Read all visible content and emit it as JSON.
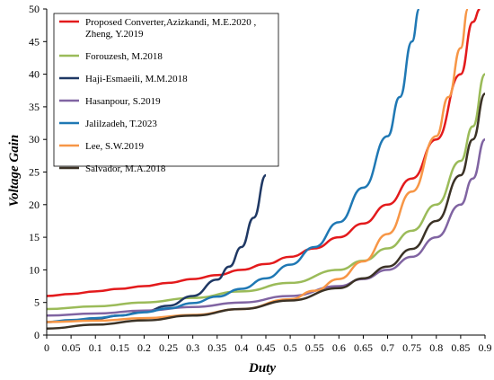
{
  "chart_data": {
    "type": "line",
    "xlabel": "Duty",
    "ylabel": "Voltage Gain",
    "xlim": [
      0,
      0.9
    ],
    "ylim": [
      0,
      50
    ],
    "xticks": [
      "0",
      "0.05",
      "0.1",
      "0.15",
      "0.2",
      "0.25",
      "0.3",
      "0.35",
      "0.4",
      "0.45",
      "0.5",
      "0.55",
      "0.6",
      "0.65",
      "0.7",
      "0.75",
      "0.8",
      "0.85",
      "0.9"
    ],
    "yticks": [
      "0",
      "5",
      "10",
      "15",
      "20",
      "25",
      "30",
      "35",
      "40",
      "45",
      "50"
    ],
    "grid": false,
    "legend_position": "top-left",
    "series": [
      {
        "name": "Proposed Converter,Azizkandi, M.E.2020 , Zheng, Y.2019",
        "color": "#e31a1c",
        "x": [
          0,
          0.05,
          0.1,
          0.15,
          0.2,
          0.25,
          0.3,
          0.35,
          0.4,
          0.45,
          0.5,
          0.55,
          0.6,
          0.65,
          0.7,
          0.75,
          0.8,
          0.85,
          0.875,
          0.89
        ],
        "y": [
          6,
          6.3,
          6.7,
          7.1,
          7.5,
          8.0,
          8.6,
          9.2,
          10.0,
          10.9,
          12.0,
          13.3,
          15.0,
          17.1,
          20.0,
          24.0,
          30.0,
          40.0,
          48.0,
          50.0
        ]
      },
      {
        "name": "Forouzesh, M.2018",
        "color": "#9bbb59",
        "x": [
          0,
          0.1,
          0.2,
          0.3,
          0.4,
          0.5,
          0.6,
          0.65,
          0.7,
          0.75,
          0.8,
          0.85,
          0.875,
          0.9
        ],
        "y": [
          4,
          4.4,
          5.0,
          5.7,
          6.7,
          8.0,
          10.0,
          11.4,
          13.3,
          16.0,
          20.0,
          26.7,
          32.0,
          40.0
        ]
      },
      {
        "name": "Haji-Esmaeili, M.M.2018",
        "color": "#1f3864",
        "x": [
          0,
          0.05,
          0.1,
          0.15,
          0.2,
          0.25,
          0.3,
          0.35,
          0.375,
          0.4,
          0.425,
          0.45
        ],
        "y": [
          2,
          2.2,
          2.5,
          3.0,
          3.6,
          4.5,
          6.0,
          8.5,
          10.5,
          13.5,
          18.0,
          24.5
        ]
      },
      {
        "name": "Hasanpour, S.2019",
        "color": "#8064a2",
        "x": [
          0,
          0.1,
          0.2,
          0.3,
          0.4,
          0.5,
          0.6,
          0.65,
          0.7,
          0.75,
          0.8,
          0.85,
          0.875,
          0.9
        ],
        "y": [
          3,
          3.3,
          3.75,
          4.3,
          5.0,
          6.0,
          7.5,
          8.6,
          10.0,
          12.0,
          15.0,
          20.0,
          24.0,
          30.0
        ]
      },
      {
        "name": "Jalilzadeh, T.2023",
        "color": "#1f78b4",
        "x": [
          0,
          0.05,
          0.1,
          0.15,
          0.2,
          0.25,
          0.3,
          0.35,
          0.4,
          0.45,
          0.5,
          0.55,
          0.6,
          0.65,
          0.7,
          0.725,
          0.75,
          0.765
        ],
        "y": [
          2,
          2.3,
          2.6,
          3.0,
          3.5,
          4.1,
          4.9,
          5.9,
          7.1,
          8.7,
          10.8,
          13.5,
          17.3,
          22.6,
          30.5,
          36.5,
          45.0,
          50.0
        ]
      },
      {
        "name": "Lee, S.W.2019",
        "color": "#f79646",
        "x": [
          0,
          0.1,
          0.2,
          0.3,
          0.4,
          0.5,
          0.55,
          0.6,
          0.65,
          0.7,
          0.75,
          0.8,
          0.825,
          0.85,
          0.865
        ],
        "y": [
          2,
          2.2,
          2.6,
          3.1,
          4.0,
          5.5,
          6.8,
          8.6,
          11.3,
          15.5,
          22.0,
          30.5,
          36.5,
          44.0,
          50.0
        ]
      },
      {
        "name": "Salvador, M.A.2018",
        "color": "#3b3226",
        "x": [
          0,
          0.1,
          0.2,
          0.3,
          0.4,
          0.5,
          0.6,
          0.65,
          0.7,
          0.75,
          0.8,
          0.85,
          0.875,
          0.9
        ],
        "y": [
          1,
          1.6,
          2.25,
          3.0,
          4.0,
          5.3,
          7.2,
          8.7,
          10.5,
          13.2,
          17.5,
          24.5,
          30.0,
          37.0
        ]
      }
    ]
  }
}
